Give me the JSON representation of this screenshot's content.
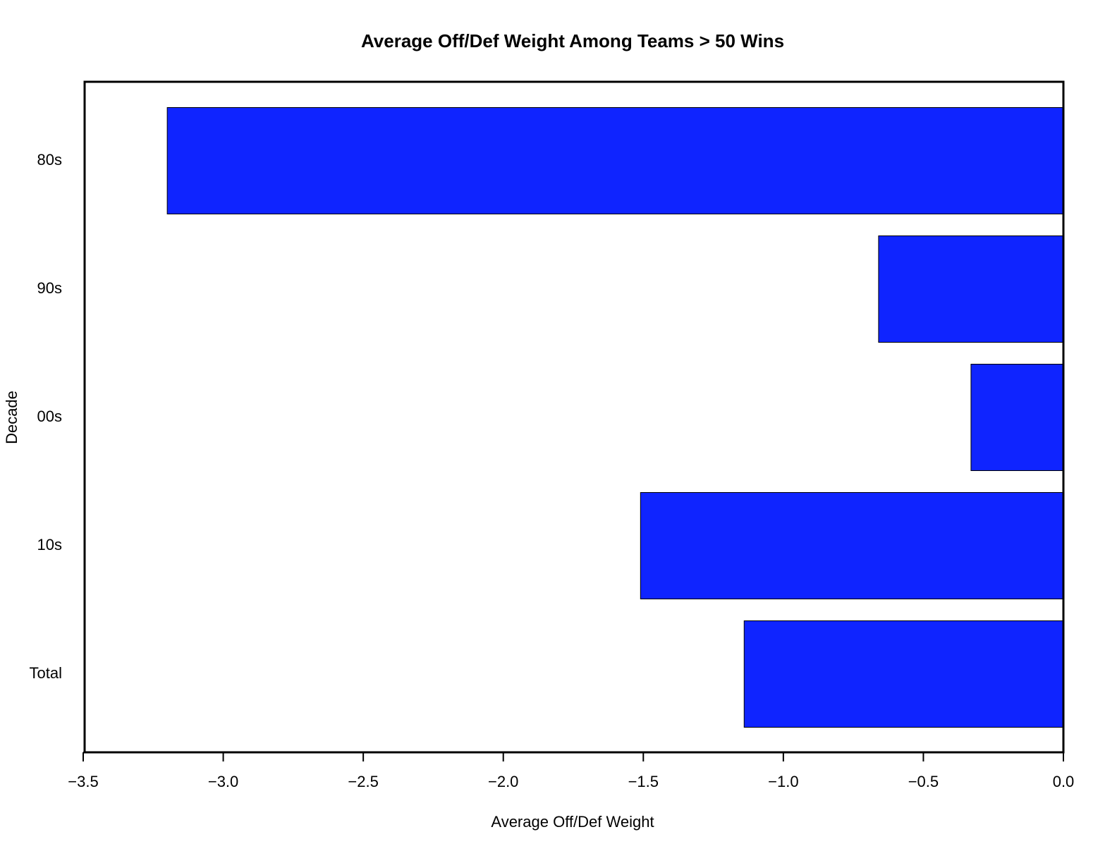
{
  "chart_data": {
    "type": "hbar",
    "title": "Average Off/Def Weight Among Teams > 50 Wins",
    "x_label": "Average Off/Def Weight",
    "y_label": "Decade",
    "categories": [
      "80s",
      "90s",
      "00s",
      "10s",
      "Total"
    ],
    "values": [
      -3.2,
      -0.66,
      -0.33,
      -1.51,
      -1.14
    ],
    "color": "#0f24ff",
    "xlim": [
      -3.5,
      0
    ],
    "xticks": [
      {
        "value": -3.5,
        "label": "−3.5"
      },
      {
        "value": -3.0,
        "label": "−3.0"
      },
      {
        "value": -2.5,
        "label": "−2.5"
      },
      {
        "value": -2.0,
        "label": "−2.0"
      },
      {
        "value": -1.5,
        "label": "−1.5"
      },
      {
        "value": -1.0,
        "label": "−1.0"
      },
      {
        "value": -0.5,
        "label": "−0.5"
      },
      {
        "value": 0,
        "label": "0.0"
      }
    ]
  }
}
